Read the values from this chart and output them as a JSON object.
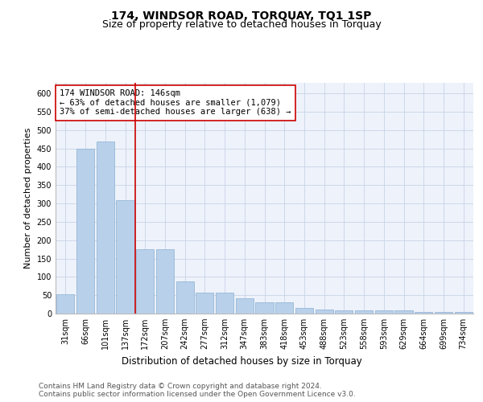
{
  "title": "174, WINDSOR ROAD, TORQUAY, TQ1 1SP",
  "subtitle": "Size of property relative to detached houses in Torquay",
  "xlabel": "Distribution of detached houses by size in Torquay",
  "ylabel": "Number of detached properties",
  "categories": [
    "31sqm",
    "66sqm",
    "101sqm",
    "137sqm",
    "172sqm",
    "207sqm",
    "242sqm",
    "277sqm",
    "312sqm",
    "347sqm",
    "383sqm",
    "418sqm",
    "453sqm",
    "488sqm",
    "523sqm",
    "558sqm",
    "593sqm",
    "629sqm",
    "664sqm",
    "699sqm",
    "734sqm"
  ],
  "values": [
    53,
    450,
    470,
    310,
    175,
    175,
    88,
    58,
    58,
    42,
    30,
    30,
    15,
    10,
    8,
    8,
    8,
    8,
    4,
    4,
    4
  ],
  "bar_color": "#b8d0ea",
  "bar_edge_color": "#8ab0d4",
  "grid_color": "#c8d4e8",
  "background_color": "#eef2fa",
  "vline_x": 3.5,
  "vline_color": "#cc0000",
  "annotation_text": "174 WINDSOR ROAD: 146sqm\n← 63% of detached houses are smaller (1,079)\n37% of semi-detached houses are larger (638) →",
  "annotation_box_color": "#ffffff",
  "annotation_box_edge": "#cc0000",
  "ylim": [
    0,
    630
  ],
  "yticks": [
    0,
    50,
    100,
    150,
    200,
    250,
    300,
    350,
    400,
    450,
    500,
    550,
    600
  ],
  "footer": "Contains HM Land Registry data © Crown copyright and database right 2024.\nContains public sector information licensed under the Open Government Licence v3.0.",
  "title_fontsize": 10,
  "subtitle_fontsize": 9,
  "xlabel_fontsize": 8.5,
  "ylabel_fontsize": 8,
  "tick_fontsize": 7,
  "annotation_fontsize": 7.5,
  "footer_fontsize": 6.5
}
